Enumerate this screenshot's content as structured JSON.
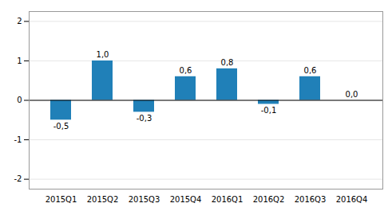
{
  "chart_data": {
    "type": "bar",
    "categories": [
      "2015Q1",
      "2015Q2",
      "2015Q3",
      "2015Q4",
      "2016Q1",
      "2016Q2",
      "2016Q3",
      "2016Q4"
    ],
    "values": [
      -0.5,
      1.0,
      -0.3,
      0.6,
      0.8,
      -0.1,
      0.6,
      0.0
    ],
    "value_labels": [
      "-0,5",
      "1,0",
      "-0,3",
      "0,6",
      "0,8",
      "-0,1",
      "0,6",
      "0,0"
    ],
    "color": "#2080B8",
    "ylim": [
      -2.25,
      2.25
    ],
    "yticks": [
      -2,
      -1,
      0,
      1,
      2
    ],
    "grid": true,
    "data_labels": true
  }
}
